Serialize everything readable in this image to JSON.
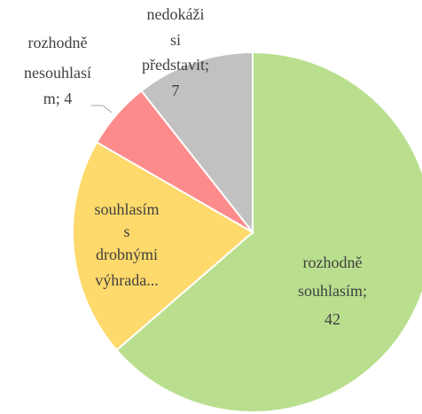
{
  "chart_data": {
    "type": "pie",
    "categories": [
      "rozhodně souhlasím",
      "souhlasím s drobnými výhrada...",
      "rozhodně nesouhlasím",
      "nedokáži si představit"
    ],
    "values": [
      42,
      13,
      4,
      7
    ],
    "colors": [
      "#b9df8e",
      "#fed96b",
      "#fe8b8b",
      "#c1c1c1"
    ],
    "labels": [
      [
        "rozhodně",
        "souhlasím;",
        "42"
      ],
      [
        "souhlasím",
        "s",
        "drobnými",
        "výhrada..."
      ],
      [
        "rozhodně",
        "nesouhlasí",
        "m; 4"
      ],
      [
        "nedokáži",
        "si",
        "představit;",
        "7"
      ]
    ]
  }
}
